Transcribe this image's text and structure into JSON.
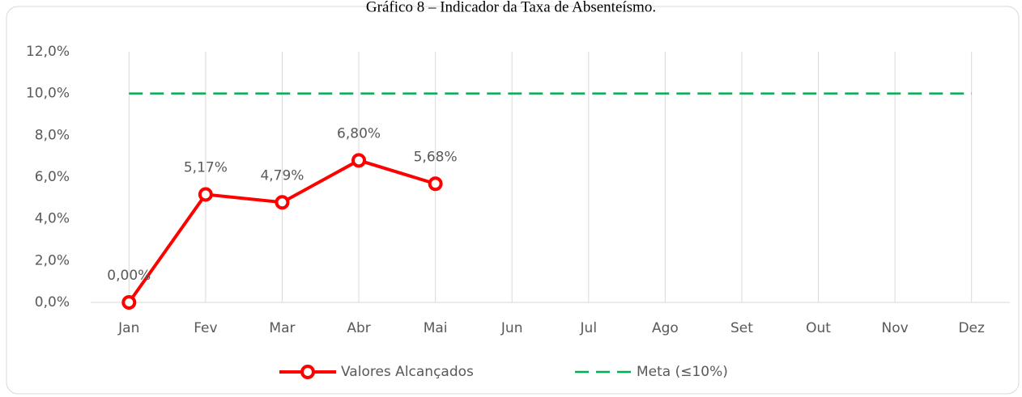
{
  "chart_data": {
    "type": "line",
    "title": "Gráfico 8 – Indicador da Taxa de Absenteísmo.",
    "categories": [
      "Jan",
      "Fev",
      "Mar",
      "Abr",
      "Mai",
      "Jun",
      "Jul",
      "Ago",
      "Set",
      "Out",
      "Nov",
      "Dez"
    ],
    "series": [
      {
        "name": "Valores Alcançados",
        "color": "#ff0000",
        "values": [
          0,
          5.17,
          4.79,
          6.8,
          5.68,
          null,
          null,
          null,
          null,
          null,
          null,
          null
        ],
        "value_labels": [
          "0,00%",
          "5,17%",
          "4,79%",
          "6,80%",
          "5,68%",
          null,
          null,
          null,
          null,
          null,
          null,
          null
        ]
      },
      {
        "name": "Meta (≤10%)",
        "color": "#00b050",
        "dashed": true,
        "values": [
          10,
          10,
          10,
          10,
          10,
          10,
          10,
          10,
          10,
          10,
          10,
          10
        ]
      }
    ],
    "ylim": [
      0,
      12
    ],
    "yticks": [
      {
        "value": 0,
        "label": "0,0%"
      },
      {
        "value": 2,
        "label": "2,0%"
      },
      {
        "value": 4,
        "label": "4,0%"
      },
      {
        "value": 6,
        "label": "6,0%"
      },
      {
        "value": 8,
        "label": "8,0%"
      },
      {
        "value": 10,
        "label": "10,0%"
      },
      {
        "value": 12,
        "label": "12,0%"
      }
    ],
    "grid": true,
    "legend": "bottom"
  }
}
